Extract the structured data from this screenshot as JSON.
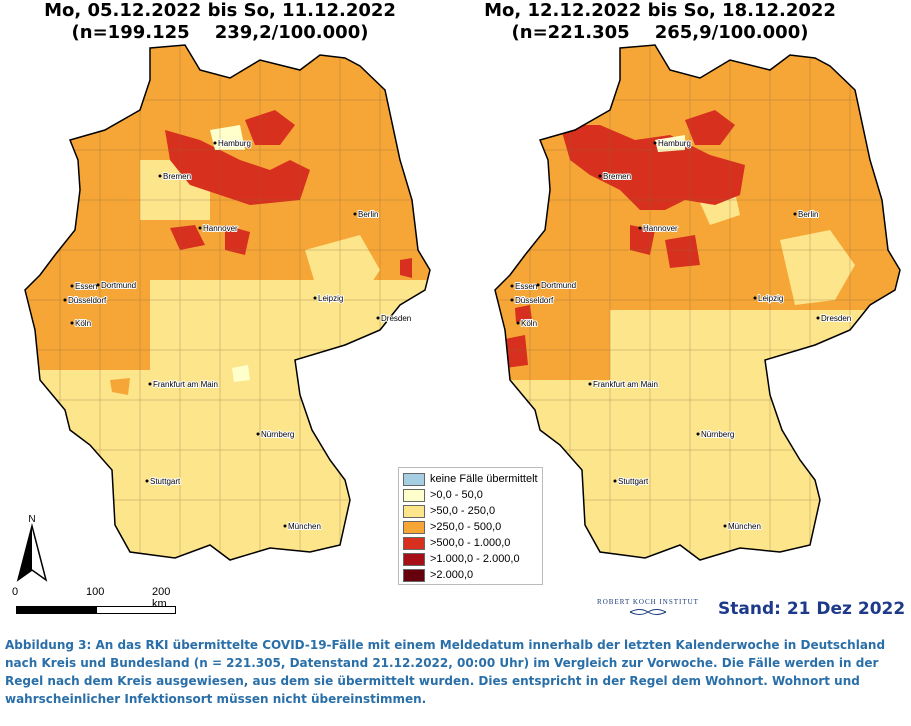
{
  "maps": [
    {
      "title": "Mo, 05.12.2022 bis So, 11.12.2022",
      "subtitle": "(n=199.125    239,2/100.000)"
    },
    {
      "title": "Mo, 12.12.2022 bis So, 18.12.2022",
      "subtitle": "(n=221.305    265,9/100.000)"
    }
  ],
  "cities": [
    "Hamburg",
    "Bremen",
    "Berlin",
    "Hannover",
    "Essen",
    "Dortmund",
    "Düsseldorf",
    "Köln",
    "Leipzig",
    "Dresden",
    "Frankfurt am Main",
    "Nürnberg",
    "Stuttgart",
    "München"
  ],
  "legend": [
    {
      "label": "keine Fälle übermittelt",
      "color": "#a6cee3"
    },
    {
      "label": ">0,0 - 50,0",
      "color": "#ffffcc"
    },
    {
      "label": ">50,0 - 250,0",
      "color": "#fde58c"
    },
    {
      "label": ">250,0 - 500,0",
      "color": "#f6a636"
    },
    {
      "label": ">500,0 - 1.000,0",
      "color": "#d7301f"
    },
    {
      "label": ">1.000,0 - 2.000,0",
      "color": "#a50f15"
    },
    {
      "label": ">2.000,0",
      "color": "#67000d"
    }
  ],
  "north_label": "N",
  "scale": {
    "labels": [
      "0",
      "100",
      "200 km"
    ]
  },
  "rki_logo_text": "ROBERT KOCH INSTITUT",
  "stand": "Stand: 21 Dez 2022",
  "caption": "Abbildung 3: An das RKI übermittelte COVID-19-Fälle mit einem Meldedatum innerhalb der letzten Kalenderwoche in Deutschland nach Kreis und Bundesland (n = 221.305, Datenstand 21.12.2022, 00:00 Uhr) im Vergleich zur Vorwoche. Die Fälle werden in der Regel nach dem Kreis ausgewiesen, aus dem sie übermittelt wurden. Dies entspricht in der Regel dem Wohnort. Wohnort und wahrscheinlicher Infektionsort müssen nicht übereinstimmen."
}
